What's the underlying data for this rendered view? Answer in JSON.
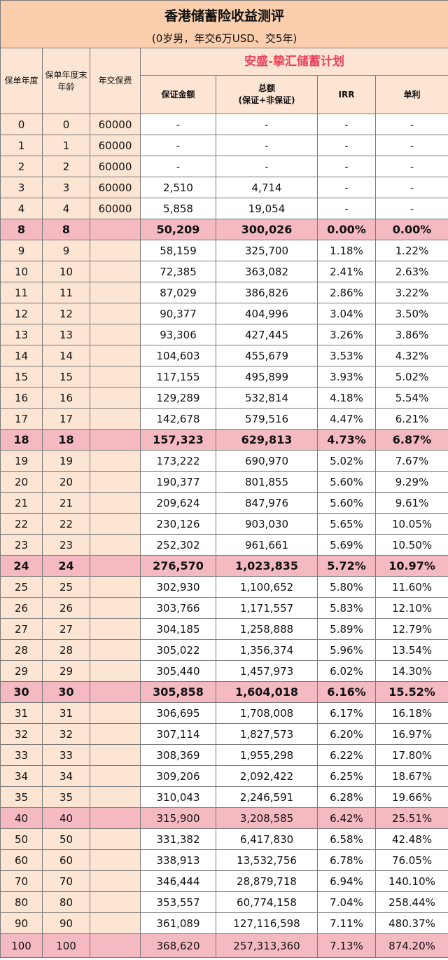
{
  "header": {
    "title": "香港储蓄险收益测评",
    "subtitle": "(0岁男，年交6万USD、交5年)"
  },
  "table": {
    "plan": "安盛-挚汇储蓄计划",
    "columns": {
      "year": "保单年度",
      "age": "保单年度末年龄",
      "premium": "年交保费",
      "guaranteed": "保证金额",
      "total": "总额",
      "total_note": "(保证+非保证)",
      "irr": "IRR",
      "simple": "单利"
    },
    "rows": [
      {
        "year": "0",
        "age": "0",
        "premium": "60000",
        "guaranteed": "-",
        "total": "-",
        "irr": "-",
        "simple": "-"
      },
      {
        "year": "1",
        "age": "1",
        "premium": "60000",
        "guaranteed": "-",
        "total": "-",
        "irr": "-",
        "simple": "-"
      },
      {
        "year": "2",
        "age": "2",
        "premium": "60000",
        "guaranteed": "-",
        "total": "-",
        "irr": "-",
        "simple": "-"
      },
      {
        "year": "3",
        "age": "3",
        "premium": "60000",
        "guaranteed": "2,510",
        "total": "4,714",
        "irr": "-",
        "simple": "-"
      },
      {
        "year": "4",
        "age": "4",
        "premium": "60000",
        "guaranteed": "5,858",
        "total": "19,054",
        "irr": "-",
        "simple": "-"
      },
      {
        "year": "8",
        "age": "8",
        "guaranteed": "50,209",
        "total": "300,026",
        "irr": "0.00%",
        "simple": "0.00%",
        "highlight": true,
        "bold": true
      },
      {
        "year": "9",
        "age": "9",
        "guaranteed": "58,159",
        "total": "325,700",
        "irr": "1.18%",
        "simple": "1.22%"
      },
      {
        "year": "10",
        "age": "10",
        "guaranteed": "72,385",
        "total": "363,082",
        "irr": "2.41%",
        "simple": "2.63%"
      },
      {
        "year": "11",
        "age": "11",
        "guaranteed": "87,029",
        "total": "386,826",
        "irr": "2.86%",
        "simple": "3.22%"
      },
      {
        "year": "12",
        "age": "12",
        "guaranteed": "90,377",
        "total": "404,996",
        "irr": "3.04%",
        "simple": "3.50%"
      },
      {
        "year": "13",
        "age": "13",
        "guaranteed": "93,306",
        "total": "427,445",
        "irr": "3.26%",
        "simple": "3.86%"
      },
      {
        "year": "14",
        "age": "14",
        "guaranteed": "104,603",
        "total": "455,679",
        "irr": "3.53%",
        "simple": "4.32%"
      },
      {
        "year": "15",
        "age": "15",
        "guaranteed": "117,155",
        "total": "495,899",
        "irr": "3.93%",
        "simple": "5.02%"
      },
      {
        "year": "16",
        "age": "16",
        "guaranteed": "129,289",
        "total": "532,814",
        "irr": "4.18%",
        "simple": "5.54%"
      },
      {
        "year": "17",
        "age": "17",
        "guaranteed": "142,678",
        "total": "579,516",
        "irr": "4.47%",
        "simple": "6.21%"
      },
      {
        "year": "18",
        "age": "18",
        "guaranteed": "157,323",
        "total": "629,813",
        "irr": "4.73%",
        "simple": "6.87%",
        "highlight": true,
        "bold": true
      },
      {
        "year": "19",
        "age": "19",
        "guaranteed": "173,222",
        "total": "690,970",
        "irr": "5.02%",
        "simple": "7.67%"
      },
      {
        "year": "20",
        "age": "20",
        "guaranteed": "190,377",
        "total": "801,855",
        "irr": "5.60%",
        "simple": "9.29%"
      },
      {
        "year": "21",
        "age": "21",
        "guaranteed": "209,624",
        "total": "847,976",
        "irr": "5.60%",
        "simple": "9.61%"
      },
      {
        "year": "22",
        "age": "22",
        "guaranteed": "230,126",
        "total": "903,030",
        "irr": "5.65%",
        "simple": "10.05%"
      },
      {
        "year": "23",
        "age": "23",
        "guaranteed": "252,302",
        "total": "961,661",
        "irr": "5.69%",
        "simple": "10.50%"
      },
      {
        "year": "24",
        "age": "24",
        "guaranteed": "276,570",
        "total": "1,023,835",
        "irr": "5.72%",
        "simple": "10.97%",
        "highlight": true,
        "bold": true
      },
      {
        "year": "25",
        "age": "25",
        "guaranteed": "302,930",
        "total": "1,100,652",
        "irr": "5.80%",
        "simple": "11.60%"
      },
      {
        "year": "26",
        "age": "26",
        "guaranteed": "303,766",
        "total": "1,171,557",
        "irr": "5.83%",
        "simple": "12.10%"
      },
      {
        "year": "27",
        "age": "27",
        "guaranteed": "304,185",
        "total": "1,258,888",
        "irr": "5.89%",
        "simple": "12.79%"
      },
      {
        "year": "28",
        "age": "28",
        "guaranteed": "305,022",
        "total": "1,356,374",
        "irr": "5.96%",
        "simple": "13.54%"
      },
      {
        "year": "29",
        "age": "29",
        "guaranteed": "305,440",
        "total": "1,457,973",
        "irr": "6.02%",
        "simple": "14.30%"
      },
      {
        "year": "30",
        "age": "30",
        "guaranteed": "305,858",
        "total": "1,604,018",
        "irr": "6.16%",
        "simple": "15.52%",
        "highlight": true,
        "bold": true
      },
      {
        "year": "31",
        "age": "31",
        "guaranteed": "306,695",
        "total": "1,708,008",
        "irr": "6.17%",
        "simple": "16.18%"
      },
      {
        "year": "32",
        "age": "32",
        "guaranteed": "307,114",
        "total": "1,827,573",
        "irr": "6.20%",
        "simple": "16.97%"
      },
      {
        "year": "33",
        "age": "33",
        "guaranteed": "308,369",
        "total": "1,955,298",
        "irr": "6.22%",
        "simple": "17.80%"
      },
      {
        "year": "34",
        "age": "34",
        "guaranteed": "309,206",
        "total": "2,092,422",
        "irr": "6.25%",
        "simple": "18.67%"
      },
      {
        "year": "35",
        "age": "35",
        "guaranteed": "310,043",
        "total": "2,246,591",
        "irr": "6.28%",
        "simple": "19.66%"
      },
      {
        "year": "40",
        "age": "40",
        "guaranteed": "315,900",
        "total": "3,208,585",
        "irr": "6.42%",
        "simple": "25.51%",
        "highlight": true
      },
      {
        "year": "50",
        "age": "50",
        "guaranteed": "331,382",
        "total": "6,417,830",
        "irr": "6.58%",
        "simple": "42.48%"
      },
      {
        "year": "60",
        "age": "60",
        "guaranteed": "338,913",
        "total": "13,532,756",
        "irr": "6.78%",
        "simple": "76.05%"
      },
      {
        "year": "70",
        "age": "70",
        "guaranteed": "346,444",
        "total": "28,879,718",
        "irr": "6.94%",
        "simple": "140.10%"
      },
      {
        "year": "80",
        "age": "80",
        "guaranteed": "353,557",
        "total": "60,774,158",
        "irr": "7.04%",
        "simple": "258.44%"
      },
      {
        "year": "90",
        "age": "90",
        "guaranteed": "361,089",
        "total": "127,116,598",
        "irr": "7.11%",
        "simple": "480.37%"
      },
      {
        "year": "100",
        "age": "100",
        "guaranteed": "368,620",
        "total": "257,313,360",
        "irr": "7.13%",
        "simple": "874.20%",
        "highlight": true
      }
    ]
  }
}
